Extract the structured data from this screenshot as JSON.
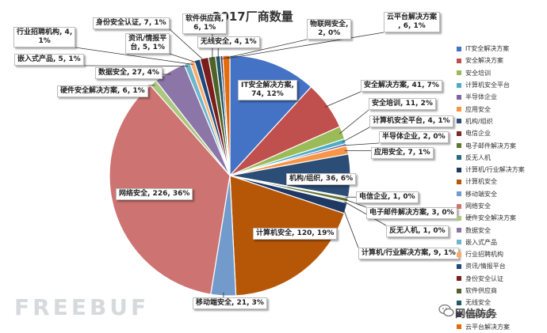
{
  "chart_data": {
    "type": "pie",
    "title": "2017厂商数量",
    "categories": [
      "IT安全解决方案",
      "安全解决方案",
      "安全培训",
      "计算机安全平台",
      "半导体企业",
      "应用安全",
      "机构/组织",
      "电信企业",
      "电子邮件解决方案",
      "反无人机",
      "计算机/行业解决方案",
      "计算机安全",
      "移动端安全",
      "网络安全",
      "硬件安全解决方案",
      "数据安全",
      "嵌入式产品",
      "行业招聘机构",
      "资讯/情报平台",
      "身份安全认证",
      "软件供应商",
      "无线安全",
      "物联网安全",
      "云平台解决方案"
    ],
    "values": [
      74,
      41,
      11,
      4,
      2,
      7,
      36,
      1,
      3,
      1,
      9,
      120,
      21,
      226,
      6,
      27,
      5,
      4,
      5,
      7,
      6,
      4,
      2,
      6
    ],
    "data_labels": [
      "IT安全解决方案,\n74, 12%",
      "安全解决方案, 41, 7%",
      "安全培训, 11, 2%",
      "计算机安全平台, 4, 1%",
      "半导体企业, 2, 0%",
      "应用安全, 7, 1%",
      "机构/组织, 36, 6%",
      "电信企业, 1, 0%",
      "电子邮件解决方案, 3, 0%",
      "反无人机, 1, 0%",
      "计算机/行业解决方案, 9, 1%",
      "计算机安全, 120, 19%",
      "移动端安全, 21, 3%",
      "网络安全, 226, 36%",
      "硬件安全解决方案, 6, 1%",
      "数据安全, 27, 4%",
      "嵌入式产品, 5, 1%",
      "行业招聘机构, 4,\n1%",
      "资讯/情报平\n台, 5, 1%",
      "身份安全认证, 7, 1%",
      "软件供应商,\n6, 1%",
      "无线安全, 4, 1%",
      "物联网安全,\n2, 0%",
      "云平台解决方案\n, 6, 1%"
    ],
    "colors": [
      "#4472c4",
      "#c0504d",
      "#9bbb59",
      "#4bacc6",
      "#8064a2",
      "#f79646",
      "#2c4d75",
      "#772c2a",
      "#5f7530",
      "#276a7c",
      "#1f3864",
      "#b65708",
      "#729aca",
      "#cd7371",
      "#acc77f",
      "#8c76a8",
      "#6fb6cb",
      "#f9ab6b",
      "#1f497d",
      "#7a1d1b",
      "#4f6228",
      "#215968",
      "#3f2f5a",
      "#e46c0a"
    ],
    "legend_position": "right"
  },
  "watermark": "FREEBUF",
  "wechat_label": "网信防务"
}
